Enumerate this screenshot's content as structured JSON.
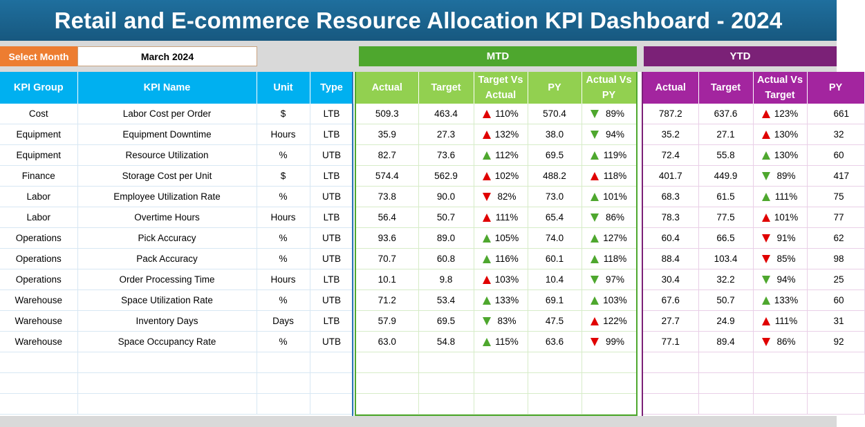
{
  "title": "Retail and E-commerce Resource Allocation KPI Dashboard - 2024",
  "month_selector": {
    "label": "Select Month",
    "value": "March 2024"
  },
  "sections": {
    "mtd": "MTD",
    "ytd": "YTD"
  },
  "kpi_headers": [
    "KPI Group",
    "KPI Name",
    "Unit",
    "Type"
  ],
  "mtd_headers": [
    "Actual",
    "Target",
    "Target Vs Actual",
    "PY",
    "Actual Vs PY"
  ],
  "ytd_headers": [
    "Actual",
    "Target",
    "Actual Vs Target",
    "PY"
  ],
  "colors": {
    "good": "#4ea72e",
    "bad": "#e00000",
    "kpi_header": "#00b0f0",
    "mtd_header": "#92d050",
    "ytd_header": "#a3259f"
  },
  "rows": [
    {
      "group": "Cost",
      "name": "Labor Cost per Order",
      "unit": "$",
      "type": "LTB",
      "mtd_actual": "509.3",
      "mtd_target": "463.4",
      "mtd_tva": "110%",
      "mtd_tva_dir": "up",
      "mtd_tva_status": "bad",
      "mtd_py": "570.4",
      "mtd_avp": "89%",
      "mtd_avp_dir": "down",
      "mtd_avp_status": "good",
      "ytd_actual": "787.2",
      "ytd_target": "637.6",
      "ytd_avt": "123%",
      "ytd_avt_dir": "up",
      "ytd_avt_status": "bad",
      "ytd_py": "661"
    },
    {
      "group": "Equipment",
      "name": "Equipment Downtime",
      "unit": "Hours",
      "type": "LTB",
      "mtd_actual": "35.9",
      "mtd_target": "27.3",
      "mtd_tva": "132%",
      "mtd_tva_dir": "up",
      "mtd_tva_status": "bad",
      "mtd_py": "38.0",
      "mtd_avp": "94%",
      "mtd_avp_dir": "down",
      "mtd_avp_status": "good",
      "ytd_actual": "35.2",
      "ytd_target": "27.1",
      "ytd_avt": "130%",
      "ytd_avt_dir": "up",
      "ytd_avt_status": "bad",
      "ytd_py": "32"
    },
    {
      "group": "Equipment",
      "name": "Resource Utilization",
      "unit": "%",
      "type": "UTB",
      "mtd_actual": "82.7",
      "mtd_target": "73.6",
      "mtd_tva": "112%",
      "mtd_tva_dir": "up",
      "mtd_tva_status": "good",
      "mtd_py": "69.5",
      "mtd_avp": "119%",
      "mtd_avp_dir": "up",
      "mtd_avp_status": "good",
      "ytd_actual": "72.4",
      "ytd_target": "55.8",
      "ytd_avt": "130%",
      "ytd_avt_dir": "up",
      "ytd_avt_status": "good",
      "ytd_py": "60"
    },
    {
      "group": "Finance",
      "name": "Storage Cost per Unit",
      "unit": "$",
      "type": "LTB",
      "mtd_actual": "574.4",
      "mtd_target": "562.9",
      "mtd_tva": "102%",
      "mtd_tva_dir": "up",
      "mtd_tva_status": "bad",
      "mtd_py": "488.2",
      "mtd_avp": "118%",
      "mtd_avp_dir": "up",
      "mtd_avp_status": "bad",
      "ytd_actual": "401.7",
      "ytd_target": "449.9",
      "ytd_avt": "89%",
      "ytd_avt_dir": "down",
      "ytd_avt_status": "good",
      "ytd_py": "417"
    },
    {
      "group": "Labor",
      "name": "Employee Utilization Rate",
      "unit": "%",
      "type": "UTB",
      "mtd_actual": "73.8",
      "mtd_target": "90.0",
      "mtd_tva": "82%",
      "mtd_tva_dir": "down",
      "mtd_tva_status": "bad",
      "mtd_py": "73.0",
      "mtd_avp": "101%",
      "mtd_avp_dir": "up",
      "mtd_avp_status": "good",
      "ytd_actual": "68.3",
      "ytd_target": "61.5",
      "ytd_avt": "111%",
      "ytd_avt_dir": "up",
      "ytd_avt_status": "good",
      "ytd_py": "75"
    },
    {
      "group": "Labor",
      "name": "Overtime Hours",
      "unit": "Hours",
      "type": "LTB",
      "mtd_actual": "56.4",
      "mtd_target": "50.7",
      "mtd_tva": "111%",
      "mtd_tva_dir": "up",
      "mtd_tva_status": "bad",
      "mtd_py": "65.4",
      "mtd_avp": "86%",
      "mtd_avp_dir": "down",
      "mtd_avp_status": "good",
      "ytd_actual": "78.3",
      "ytd_target": "77.5",
      "ytd_avt": "101%",
      "ytd_avt_dir": "up",
      "ytd_avt_status": "bad",
      "ytd_py": "77"
    },
    {
      "group": "Operations",
      "name": "Pick Accuracy",
      "unit": "%",
      "type": "UTB",
      "mtd_actual": "93.6",
      "mtd_target": "89.0",
      "mtd_tva": "105%",
      "mtd_tva_dir": "up",
      "mtd_tva_status": "good",
      "mtd_py": "74.0",
      "mtd_avp": "127%",
      "mtd_avp_dir": "up",
      "mtd_avp_status": "good",
      "ytd_actual": "60.4",
      "ytd_target": "66.5",
      "ytd_avt": "91%",
      "ytd_avt_dir": "down",
      "ytd_avt_status": "bad",
      "ytd_py": "62"
    },
    {
      "group": "Operations",
      "name": "Pack Accuracy",
      "unit": "%",
      "type": "UTB",
      "mtd_actual": "70.7",
      "mtd_target": "60.8",
      "mtd_tva": "116%",
      "mtd_tva_dir": "up",
      "mtd_tva_status": "good",
      "mtd_py": "60.1",
      "mtd_avp": "118%",
      "mtd_avp_dir": "up",
      "mtd_avp_status": "good",
      "ytd_actual": "88.4",
      "ytd_target": "103.4",
      "ytd_avt": "85%",
      "ytd_avt_dir": "down",
      "ytd_avt_status": "bad",
      "ytd_py": "98"
    },
    {
      "group": "Operations",
      "name": "Order Processing Time",
      "unit": "Hours",
      "type": "LTB",
      "mtd_actual": "10.1",
      "mtd_target": "9.8",
      "mtd_tva": "103%",
      "mtd_tva_dir": "up",
      "mtd_tva_status": "bad",
      "mtd_py": "10.4",
      "mtd_avp": "97%",
      "mtd_avp_dir": "down",
      "mtd_avp_status": "good",
      "ytd_actual": "30.4",
      "ytd_target": "32.2",
      "ytd_avt": "94%",
      "ytd_avt_dir": "down",
      "ytd_avt_status": "good",
      "ytd_py": "25"
    },
    {
      "group": "Warehouse",
      "name": "Space Utilization Rate",
      "unit": "%",
      "type": "UTB",
      "mtd_actual": "71.2",
      "mtd_target": "53.4",
      "mtd_tva": "133%",
      "mtd_tva_dir": "up",
      "mtd_tva_status": "good",
      "mtd_py": "69.1",
      "mtd_avp": "103%",
      "mtd_avp_dir": "up",
      "mtd_avp_status": "good",
      "ytd_actual": "67.6",
      "ytd_target": "50.7",
      "ytd_avt": "133%",
      "ytd_avt_dir": "up",
      "ytd_avt_status": "good",
      "ytd_py": "60"
    },
    {
      "group": "Warehouse",
      "name": "Inventory Days",
      "unit": "Days",
      "type": "LTB",
      "mtd_actual": "57.9",
      "mtd_target": "69.5",
      "mtd_tva": "83%",
      "mtd_tva_dir": "down",
      "mtd_tva_status": "good",
      "mtd_py": "47.5",
      "mtd_avp": "122%",
      "mtd_avp_dir": "up",
      "mtd_avp_status": "bad",
      "ytd_actual": "27.7",
      "ytd_target": "24.9",
      "ytd_avt": "111%",
      "ytd_avt_dir": "up",
      "ytd_avt_status": "bad",
      "ytd_py": "31"
    },
    {
      "group": "Warehouse",
      "name": "Space Occupancy Rate",
      "unit": "%",
      "type": "UTB",
      "mtd_actual": "63.0",
      "mtd_target": "54.8",
      "mtd_tva": "115%",
      "mtd_tva_dir": "up",
      "mtd_tva_status": "good",
      "mtd_py": "63.6",
      "mtd_avp": "99%",
      "mtd_avp_dir": "down",
      "mtd_avp_status": "bad",
      "ytd_actual": "77.1",
      "ytd_target": "89.4",
      "ytd_avt": "86%",
      "ytd_avt_dir": "down",
      "ytd_avt_status": "bad",
      "ytd_py": "92"
    }
  ]
}
